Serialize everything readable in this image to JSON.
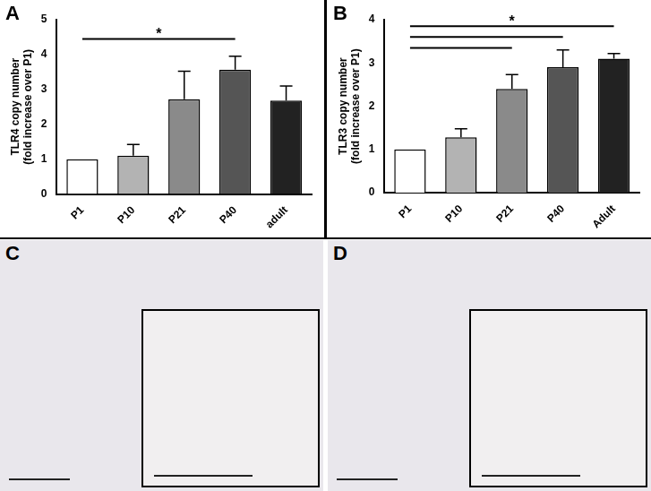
{
  "chart_data": [
    {
      "type": "bar",
      "title": "A",
      "y_label": [
        "TLR4 copy number",
        "(fold increase over P1)"
      ],
      "categories": [
        "P1",
        "P10",
        "P21",
        "P40",
        "adult"
      ],
      "values": [
        1,
        1.1,
        2.72,
        3.57,
        2.68
      ],
      "errors": [
        0,
        0.32,
        0.8,
        0.38,
        0.42
      ],
      "colors": [
        "#ffffff",
        "#b3b3b3",
        "#8a8a8a",
        "#555555",
        "#222222"
      ],
      "ylim": [
        0,
        5
      ],
      "yticks": [
        0,
        1,
        2,
        3,
        4,
        5
      ],
      "grid": false,
      "annotations": [
        {
          "from": "P1",
          "to": "P40",
          "y": 4.45,
          "label": "*"
        }
      ]
    },
    {
      "type": "bar",
      "title": "B",
      "y_label": [
        "TLR3 copy number",
        "(fold increase over P1)"
      ],
      "categories": [
        "P1",
        "P10",
        "P21",
        "P40",
        "Adult"
      ],
      "values": [
        1,
        1.28,
        2.4,
        2.9,
        3.1
      ],
      "errors": [
        0,
        0.2,
        0.33,
        0.4,
        0.12
      ],
      "colors": [
        "#ffffff",
        "#b3b3b3",
        "#8a8a8a",
        "#555555",
        "#222222"
      ],
      "ylim": [
        0,
        4
      ],
      "yticks": [
        0,
        1,
        2,
        3,
        4
      ],
      "grid": false,
      "annotations": [
        {
          "from": "P1",
          "to": "Adult",
          "y": 3.85,
          "label": "*"
        },
        {
          "from": "P1",
          "to": "P40",
          "y": 3.6
        },
        {
          "from": "P1",
          "to": "P21",
          "y": 3.35
        }
      ]
    }
  ],
  "panels": [
    {
      "label": "C"
    },
    {
      "label": "D"
    }
  ]
}
